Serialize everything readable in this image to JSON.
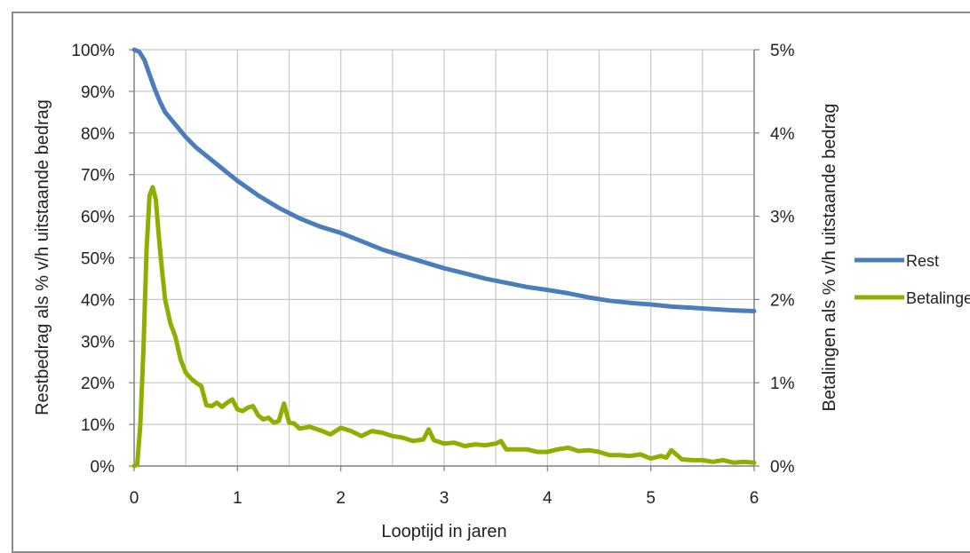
{
  "chart_data": {
    "type": "line",
    "title": "",
    "xlabel": "Looptijd in jaren",
    "ylabel": "Restbedrag als % v/h uitstaande bedrag",
    "y2label": "Betalingen als % v/h uitstaande bedrag",
    "xlim": [
      0,
      6
    ],
    "ylim": [
      0,
      100
    ],
    "y2lim": [
      0,
      5
    ],
    "x_ticks": [
      "0",
      "1",
      "2",
      "3",
      "4",
      "5",
      "6"
    ],
    "y_ticks": [
      "0%",
      "10%",
      "20%",
      "30%",
      "40%",
      "50%",
      "60%",
      "70%",
      "80%",
      "90%",
      "100%"
    ],
    "y2_ticks": [
      "0%",
      "1%",
      "2%",
      "3%",
      "4%",
      "5%"
    ],
    "grid": true,
    "legend_position": "right",
    "series": [
      {
        "name": "Rest",
        "axis": "left",
        "color": "#4a7ebb",
        "x": [
          0,
          0.05,
          0.1,
          0.15,
          0.2,
          0.25,
          0.3,
          0.4,
          0.5,
          0.6,
          0.7,
          0.8,
          0.9,
          1.0,
          1.2,
          1.4,
          1.6,
          1.8,
          2.0,
          2.2,
          2.4,
          2.6,
          2.8,
          3.0,
          3.2,
          3.4,
          3.6,
          3.8,
          4.0,
          4.2,
          4.4,
          4.6,
          4.8,
          5.0,
          5.2,
          5.4,
          5.6,
          5.8,
          6.0
        ],
        "y": [
          100,
          99.5,
          97.5,
          94,
          90.5,
          87.5,
          85,
          82,
          79,
          76.5,
          74.5,
          72.5,
          70.5,
          68.5,
          65,
          62,
          59.5,
          57.5,
          56,
          54,
          52,
          50.5,
          49,
          47.5,
          46.3,
          45,
          44,
          43,
          42.3,
          41.5,
          40.5,
          39.7,
          39.2,
          38.8,
          38.3,
          38,
          37.7,
          37.4,
          37.2
        ]
      },
      {
        "name": "Betalingen",
        "axis": "right",
        "color": "#8db000",
        "x": [
          0,
          0.03,
          0.06,
          0.09,
          0.12,
          0.15,
          0.18,
          0.21,
          0.24,
          0.27,
          0.3,
          0.35,
          0.4,
          0.45,
          0.5,
          0.55,
          0.6,
          0.65,
          0.7,
          0.75,
          0.8,
          0.85,
          0.9,
          0.95,
          1.0,
          1.05,
          1.1,
          1.15,
          1.2,
          1.25,
          1.3,
          1.35,
          1.4,
          1.45,
          1.5,
          1.55,
          1.6,
          1.7,
          1.8,
          1.9,
          2.0,
          2.1,
          2.2,
          2.3,
          2.4,
          2.5,
          2.6,
          2.7,
          2.8,
          2.85,
          2.9,
          3.0,
          3.1,
          3.2,
          3.3,
          3.4,
          3.5,
          3.55,
          3.6,
          3.7,
          3.8,
          3.9,
          4.0,
          4.1,
          4.2,
          4.3,
          4.4,
          4.5,
          4.6,
          4.7,
          4.8,
          4.9,
          5.0,
          5.1,
          5.15,
          5.2,
          5.3,
          5.4,
          5.5,
          5.6,
          5.7,
          5.8,
          5.9,
          6.0
        ],
        "y": [
          0,
          0.02,
          0.5,
          1.4,
          2.6,
          3.25,
          3.35,
          3.2,
          2.75,
          2.35,
          2.0,
          1.72,
          1.55,
          1.28,
          1.12,
          1.05,
          1.0,
          0.96,
          0.73,
          0.72,
          0.76,
          0.71,
          0.76,
          0.8,
          0.68,
          0.66,
          0.7,
          0.72,
          0.61,
          0.56,
          0.58,
          0.52,
          0.54,
          0.75,
          0.52,
          0.51,
          0.45,
          0.47,
          0.43,
          0.38,
          0.46,
          0.42,
          0.36,
          0.42,
          0.4,
          0.36,
          0.34,
          0.3,
          0.32,
          0.44,
          0.31,
          0.27,
          0.28,
          0.24,
          0.26,
          0.25,
          0.27,
          0.3,
          0.2,
          0.2,
          0.2,
          0.17,
          0.17,
          0.2,
          0.22,
          0.18,
          0.19,
          0.17,
          0.13,
          0.13,
          0.12,
          0.14,
          0.09,
          0.12,
          0.1,
          0.19,
          0.08,
          0.07,
          0.07,
          0.05,
          0.07,
          0.04,
          0.05,
          0.04
        ]
      }
    ]
  }
}
